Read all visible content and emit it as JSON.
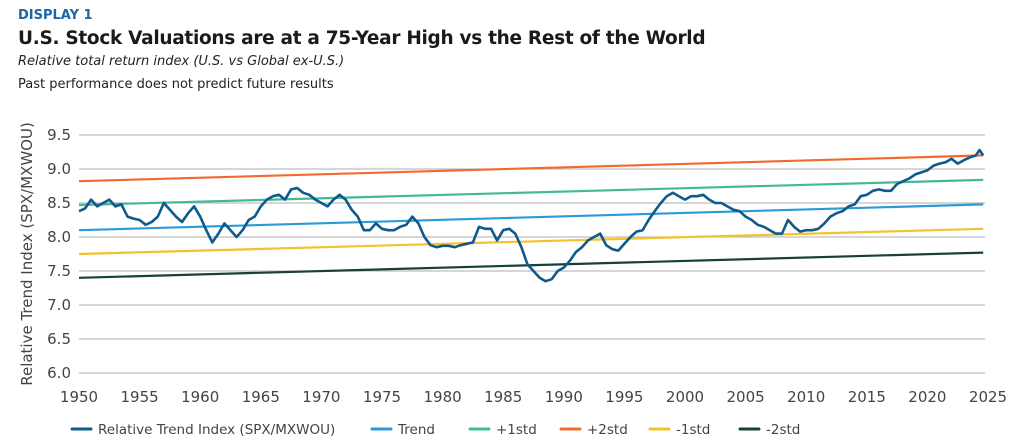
{
  "header": {
    "display_label": "DISPLAY 1",
    "title": "U.S. Stock Valuations are at a 75-Year High vs the Rest of the World",
    "subtitle": "Relative total return index (U.S. vs Global ex-U.S.)",
    "note": "Past performance does not predict future results"
  },
  "chart_data": {
    "type": "line",
    "title": "U.S. Stock Valuations are at a 75-Year High vs the Rest of the World",
    "xlabel": "",
    "ylabel": "Relative Trend Index (SPX/MXWOU)",
    "xlim": [
      1950,
      2025
    ],
    "ylim": [
      6.0,
      9.5
    ],
    "x_ticks": [
      "1950",
      "1955",
      "1960",
      "1965",
      "1970",
      "1975",
      "1980",
      "1985",
      "1990",
      "1995",
      "2000",
      "2005",
      "2010",
      "2015",
      "2020",
      "2025"
    ],
    "y_ticks": [
      "6.0",
      "6.5",
      "7.0",
      "7.5",
      "8.0",
      "8.5",
      "9.0",
      "9.5"
    ],
    "grid": "horizontal",
    "legend_position": "bottom",
    "series": [
      {
        "name": "Relative Trend Index (SPX/MXWOU)",
        "color": "#0f5a8c",
        "x": [
          1950,
          1950.5,
          1951,
          1951.5,
          1952,
          1952.5,
          1953,
          1953.5,
          1954,
          1954.5,
          1955,
          1955.5,
          1956,
          1956.5,
          1957,
          1957.5,
          1958,
          1958.5,
          1959,
          1959.5,
          1960,
          1960.5,
          1961,
          1961.5,
          1962,
          1962.5,
          1963,
          1963.5,
          1964,
          1964.5,
          1965,
          1965.5,
          1966,
          1966.5,
          1967,
          1967.5,
          1968,
          1968.5,
          1969,
          1969.5,
          1970,
          1970.5,
          1971,
          1971.5,
          1972,
          1972.5,
          1973,
          1973.5,
          1974,
          1974.5,
          1975,
          1975.5,
          1976,
          1976.5,
          1977,
          1977.5,
          1978,
          1978.5,
          1979,
          1979.5,
          1980,
          1980.5,
          1981,
          1981.5,
          1982,
          1982.5,
          1983,
          1983.5,
          1984,
          1984.5,
          1985,
          1985.5,
          1986,
          1986.5,
          1987,
          1987.5,
          1988,
          1988.5,
          1989,
          1989.5,
          1990,
          1990.5,
          1991,
          1991.5,
          1992,
          1992.5,
          1993,
          1993.5,
          1994,
          1994.5,
          1995,
          1995.5,
          1996,
          1996.5,
          1997,
          1997.5,
          1998,
          1998.5,
          1999,
          1999.5,
          2000,
          2000.5,
          2001,
          2001.5,
          2002,
          2002.5,
          2003,
          2003.5,
          2004,
          2004.5,
          2005,
          2005.5,
          2006,
          2006.5,
          2007,
          2007.5,
          2008,
          2008.5,
          2009,
          2009.5,
          2010,
          2010.5,
          2011,
          2011.5,
          2012,
          2012.5,
          2013,
          2013.5,
          2014,
          2014.5,
          2015,
          2015.5,
          2016,
          2016.5,
          2017,
          2017.5,
          2018,
          2018.5,
          2019,
          2019.5,
          2020,
          2020.5,
          2021,
          2021.5,
          2022,
          2022.5,
          2023,
          2023.5,
          2024,
          2024.3,
          2024.6
        ],
        "values": [
          8.38,
          8.42,
          8.55,
          8.45,
          8.5,
          8.55,
          8.45,
          8.48,
          8.3,
          8.27,
          8.25,
          8.18,
          8.22,
          8.3,
          8.5,
          8.4,
          8.3,
          8.22,
          8.35,
          8.45,
          8.3,
          8.1,
          7.92,
          8.05,
          8.2,
          8.1,
          8.0,
          8.1,
          8.25,
          8.3,
          8.45,
          8.55,
          8.6,
          8.62,
          8.55,
          8.7,
          8.72,
          8.65,
          8.62,
          8.55,
          8.5,
          8.45,
          8.55,
          8.62,
          8.55,
          8.4,
          8.3,
          8.1,
          8.1,
          8.2,
          8.12,
          8.1,
          8.1,
          8.15,
          8.18,
          8.3,
          8.2,
          8.0,
          7.88,
          7.85,
          7.87,
          7.87,
          7.85,
          7.88,
          7.9,
          7.92,
          8.15,
          8.12,
          8.12,
          7.95,
          8.1,
          8.12,
          8.05,
          7.85,
          7.6,
          7.5,
          7.4,
          7.35,
          7.38,
          7.5,
          7.55,
          7.65,
          7.78,
          7.85,
          7.95,
          8.0,
          8.05,
          7.88,
          7.82,
          7.8,
          7.9,
          8.0,
          8.08,
          8.1,
          8.25,
          8.38,
          8.5,
          8.6,
          8.65,
          8.6,
          8.55,
          8.6,
          8.6,
          8.62,
          8.55,
          8.5,
          8.5,
          8.45,
          8.4,
          8.38,
          8.3,
          8.25,
          8.18,
          8.15,
          8.1,
          8.05,
          8.05,
          8.25,
          8.15,
          8.08,
          8.1,
          8.1,
          8.12,
          8.2,
          8.3,
          8.35,
          8.38,
          8.45,
          8.48,
          8.6,
          8.62,
          8.68,
          8.7,
          8.68,
          8.68,
          8.78,
          8.82,
          8.86,
          8.92,
          8.95,
          8.98,
          9.05,
          9.08,
          9.1,
          9.15,
          9.08,
          9.13,
          9.17,
          9.2,
          9.28,
          9.2
        ]
      },
      {
        "name": "Trend",
        "color": "#2a9ad8",
        "x": [
          1950,
          2024.6
        ],
        "values": [
          8.1,
          8.48
        ]
      },
      {
        "name": "+1std",
        "color": "#45b995",
        "x": [
          1950,
          2024.6
        ],
        "values": [
          8.47,
          8.84
        ]
      },
      {
        "name": "+2std",
        "color": "#f26a2e",
        "x": [
          1950,
          2024.6
        ],
        "values": [
          8.82,
          9.2
        ]
      },
      {
        "name": "-1std",
        "color": "#f5c22a",
        "x": [
          1950,
          2024.6
        ],
        "values": [
          7.75,
          8.12
        ]
      },
      {
        "name": "-2std",
        "color": "#173f3c",
        "x": [
          1950,
          2024.6
        ],
        "values": [
          7.4,
          7.77
        ]
      }
    ]
  }
}
